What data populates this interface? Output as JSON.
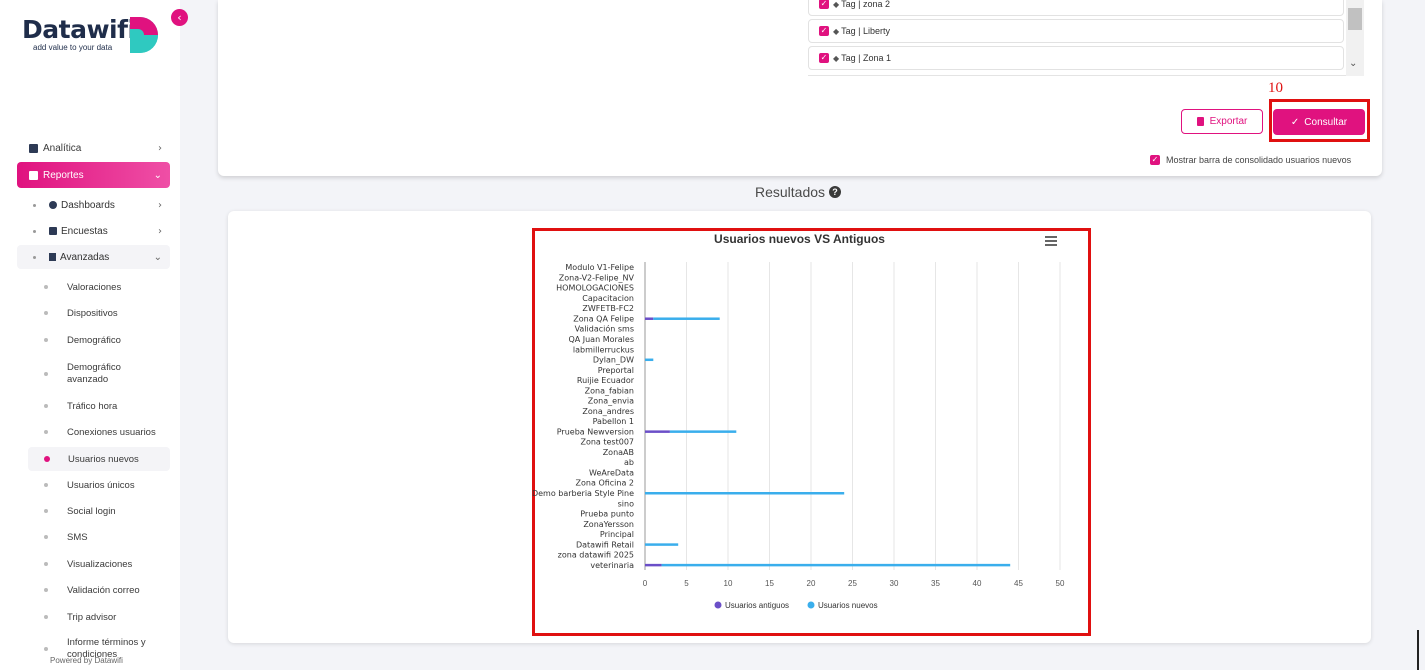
{
  "sidebar": {
    "brand": "Datawifi",
    "tagline": "add value to your data",
    "collapse_icon": "chevron-left-icon",
    "menu": [
      {
        "label": "Analítica",
        "icon": "bar-chart-icon"
      },
      {
        "label": "Reportes",
        "icon": "document-icon",
        "active": true
      }
    ],
    "sub": [
      {
        "label": "Dashboards",
        "icon": "speedometer-icon"
      },
      {
        "label": "Encuestas",
        "icon": "clipboard-icon"
      },
      {
        "label": "Avanzadas",
        "icon": "bars-icon"
      }
    ],
    "leaves": [
      {
        "label": "Valoraciones"
      },
      {
        "label": "Dispositivos"
      },
      {
        "label": "Demográfico"
      },
      {
        "label": "Demográfico avanzado"
      },
      {
        "label": "Tráfico hora"
      },
      {
        "label": "Conexiones usuarios"
      },
      {
        "label": "Usuarios nuevos",
        "active": true
      },
      {
        "label": "Usuarios únicos"
      },
      {
        "label": "Social login"
      },
      {
        "label": "SMS"
      },
      {
        "label": "Visualizaciones"
      },
      {
        "label": "Validación correo"
      },
      {
        "label": "Trip advisor"
      },
      {
        "label": "Informe términos y condiciones"
      }
    ],
    "powered": "Powered by Datawifi"
  },
  "filters": {
    "tags": [
      "Tag | zona 2",
      "Tag | Liberty",
      "Tag | Zona 1"
    ],
    "annotation": "10",
    "export_label": "Exportar",
    "consult_label": "Consultar",
    "consolidated_label": "Mostrar barra de consolidado usuarios nuevos"
  },
  "results": {
    "title": "Resultados"
  },
  "colors": {
    "accent": "#e0127f",
    "old_users": "#6b4fc8",
    "new_users": "#3aaeec",
    "highlight": "#e01010"
  },
  "chart_data": {
    "type": "bar",
    "orientation": "horizontal",
    "stacked": true,
    "title": "Usuarios nuevos VS Antiguos",
    "categories": [
      "Modulo V1-Felipe",
      "Zona-V2-Felipe_NV",
      "HOMOLOGACIONES",
      "Capacitacion",
      "ZWFETB-FC2",
      "Zona QA Felipe",
      "Validación sms",
      "QA Juan Morales",
      "labmillerruckus",
      "Dylan_DW",
      "Preportal",
      "Ruijie Ecuador",
      "Zona_fabian",
      "Zona_envia",
      "Zona_andres",
      "Pabellon 1",
      "Prueba Newversion",
      "Zona test007",
      "ZonaAB",
      "ab",
      "WeAreData",
      "Zona Oficina 2",
      "Demo barberia Style Pine",
      "sino",
      "Prueba punto",
      "ZonaYersson",
      "Principal",
      "Datawifi Retail",
      "zona datawifi 2025",
      "veterinaria"
    ],
    "series": [
      {
        "name": "Usuarios antiguos",
        "values": [
          0,
          0,
          0,
          0,
          0,
          1,
          0,
          0,
          0,
          0,
          0,
          0,
          0,
          0,
          0,
          0,
          3,
          0,
          0,
          0,
          0,
          0,
          0,
          0,
          0,
          0,
          0,
          0,
          0,
          2
        ]
      },
      {
        "name": "Usuarios nuevos",
        "values": [
          0,
          0,
          0,
          0,
          0,
          8,
          0,
          0,
          0,
          1,
          0,
          0,
          0,
          0,
          0,
          0,
          8,
          0,
          0,
          0,
          0,
          0,
          24,
          0,
          0,
          0,
          0,
          4,
          0,
          42
        ]
      }
    ],
    "xlim": [
      0,
      50
    ],
    "xticks": [
      0,
      5,
      10,
      15,
      20,
      25,
      30,
      35,
      40,
      45,
      50
    ],
    "grid": true,
    "legend_position": "bottom"
  }
}
